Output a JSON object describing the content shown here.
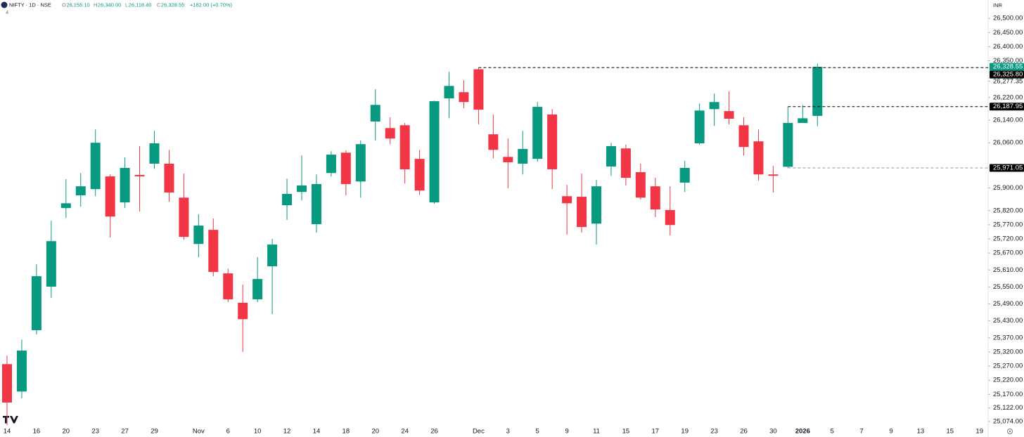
{
  "header": {
    "title": "NIFTY · 1D · NSE",
    "ohlc": [
      {
        "key": "O",
        "value": "26,155.10"
      },
      {
        "key": "H",
        "value": "26,340.00"
      },
      {
        "key": "L",
        "value": "26,118.40"
      },
      {
        "key": "C",
        "value": "26,328.55"
      }
    ],
    "change": "+182.00 (+0.70%)",
    "indicators": "4",
    "currency": "INR"
  },
  "chart_data": {
    "type": "candlestick",
    "up_color": "#089981",
    "down_color": "#f23645",
    "categories": [
      "14",
      null,
      "16",
      null,
      "20",
      null,
      "23",
      null,
      "27",
      null,
      "29",
      null,
      null,
      "Nov",
      null,
      "6",
      null,
      "10",
      null,
      "12",
      null,
      "14",
      null,
      "18",
      null,
      "20",
      null,
      "24",
      null,
      "26",
      null,
      null,
      "Dec",
      null,
      "3",
      null,
      "5",
      null,
      "9",
      null,
      "11",
      null,
      "15",
      null,
      "17",
      null,
      "19",
      null,
      "23",
      null,
      "26",
      null,
      "30",
      null,
      "2026",
      null,
      "5",
      null,
      "7",
      null,
      "9",
      null,
      "13",
      null,
      "15",
      null,
      "19"
    ],
    "open": [
      25277,
      25180,
      25397,
      25551,
      25829,
      25874,
      25896,
      25941,
      25849,
      25946,
      25986,
      25986,
      25866,
      25702,
      25752,
      25598,
      25494,
      25506,
      25623,
      25839,
      25886,
      25772,
      25953,
      26025,
      25923,
      26135,
      26112,
      26122,
      26003,
      25849,
      26217,
      26239,
      26320,
      26090,
      26010,
      25986,
      26003,
      26160,
      25871,
      25869,
      25774,
      25976,
      26040,
      25956,
      25906,
      25822,
      25919,
      26058,
      26179,
      26172,
      26122,
      26065,
      25948,
      25975,
      26130,
      26155.1,
      null,
      null,
      null,
      null,
      null,
      null,
      null,
      null,
      null,
      null,
      null
    ],
    "high": [
      25307,
      25364,
      25630,
      25784,
      25931,
      25953,
      26107,
      25948,
      26008,
      26048,
      26102,
      26035,
      25951,
      25807,
      25792,
      25615,
      25558,
      25655,
      25720,
      25933,
      26015,
      25948,
      26030,
      26033,
      26068,
      26249,
      26150,
      26130,
      26035,
      26209,
      26311,
      26281,
      26325.8,
      26160,
      26075,
      26102,
      26204,
      26179,
      25911,
      25951,
      25928,
      26060,
      26053,
      25986,
      25936,
      25906,
      25996,
      26199,
      26234,
      26242,
      26150,
      26107,
      25978,
      26187.95,
      26194,
      26340,
      null,
      null,
      null,
      null,
      null,
      null,
      null,
      null,
      null,
      null,
      null
    ],
    "low": [
      25061,
      25156,
      25382,
      25511,
      25794,
      25834,
      25871,
      25725,
      25829,
      25817,
      25968,
      25851,
      25717,
      25655,
      25588,
      25496,
      25320,
      25496,
      25454,
      25787,
      25856,
      25742,
      25941,
      25874,
      25866,
      26068,
      26055,
      25916,
      25876,
      25844,
      26147,
      26182,
      26125,
      26005,
      25899,
      25948,
      25993,
      25896,
      25735,
      25742,
      25700,
      25943,
      25909,
      25859,
      25797,
      25732,
      25886,
      26053,
      26120,
      26125,
      26015,
      25926,
      25884,
      25971.05,
      26135,
      26118.4,
      null,
      null,
      null,
      null,
      null,
      null,
      null,
      null,
      null,
      null,
      null
    ],
    "close": [
      25141,
      25325,
      25588,
      25712,
      25846,
      25906,
      26060,
      25799,
      25971,
      25941,
      26058,
      25884,
      25727,
      25767,
      25603,
      25506,
      25436,
      25578,
      25700,
      25879,
      25909,
      25914,
      26018,
      25914,
      26055,
      26194,
      26075,
      25966,
      25891,
      26207,
      26261,
      26204,
      26177,
      26035,
      25991,
      26038,
      26187,
      25966,
      25846,
      25762,
      25906,
      26048,
      25936,
      25866,
      25824,
      25769,
      25971,
      26174,
      26204,
      26145,
      26045,
      25948,
      25943,
      26130,
      26146.55,
      26328.55,
      null,
      null,
      null,
      null,
      null,
      null,
      null,
      null,
      null,
      null,
      null
    ],
    "ylim": [
      25049,
      26565
    ],
    "yticks": [
      {
        "value": 26500,
        "label": "26,500.00"
      },
      {
        "value": 26450,
        "label": "26,450.00"
      },
      {
        "value": 26400,
        "label": "26,400.00"
      },
      {
        "value": 26350,
        "label": "26,350.00"
      },
      {
        "value": 26277.35,
        "label": "26,277.35"
      },
      {
        "value": 26220,
        "label": "26,220.00"
      },
      {
        "value": 26140,
        "label": "26,140.00"
      },
      {
        "value": 26060,
        "label": "26,060.00"
      },
      {
        "value": 25900,
        "label": "25,900.00"
      },
      {
        "value": 25820,
        "label": "25,820.00"
      },
      {
        "value": 25770,
        "label": "25,770.00"
      },
      {
        "value": 25720,
        "label": "25,720.00"
      },
      {
        "value": 25670,
        "label": "25,670.00"
      },
      {
        "value": 25610,
        "label": "25,610.00"
      },
      {
        "value": 25550,
        "label": "25,550.00"
      },
      {
        "value": 25490,
        "label": "25,490.00"
      },
      {
        "value": 25430,
        "label": "25,430.00"
      },
      {
        "value": 25370,
        "label": "25,370.00"
      },
      {
        "value": 25320,
        "label": "25,320.00"
      },
      {
        "value": 25270,
        "label": "25,270.00"
      },
      {
        "value": 25220,
        "label": "25,220.00"
      },
      {
        "value": 25170,
        "label": "25,170.00"
      },
      {
        "value": 25122,
        "label": "25,122.00"
      },
      {
        "value": 25074,
        "label": "25,074.00"
      }
    ],
    "price_lines": [
      {
        "value": 26328.55,
        "label": "26,328.55",
        "label_color": "#089981",
        "line": false,
        "line_color": "#089981"
      },
      {
        "value": 26325.8,
        "label": "26,325.80",
        "label_color": "#000000",
        "line": true,
        "line_color": "#000000"
      },
      {
        "value": 26187.95,
        "label": "26,187.95",
        "label_color": "#000000",
        "line": true,
        "line_color": "#000000"
      },
      {
        "value": 25971.05,
        "label": "25,971.05",
        "label_color": "#000000",
        "line": true,
        "line_color": "#9598a1"
      }
    ],
    "grid": false
  }
}
